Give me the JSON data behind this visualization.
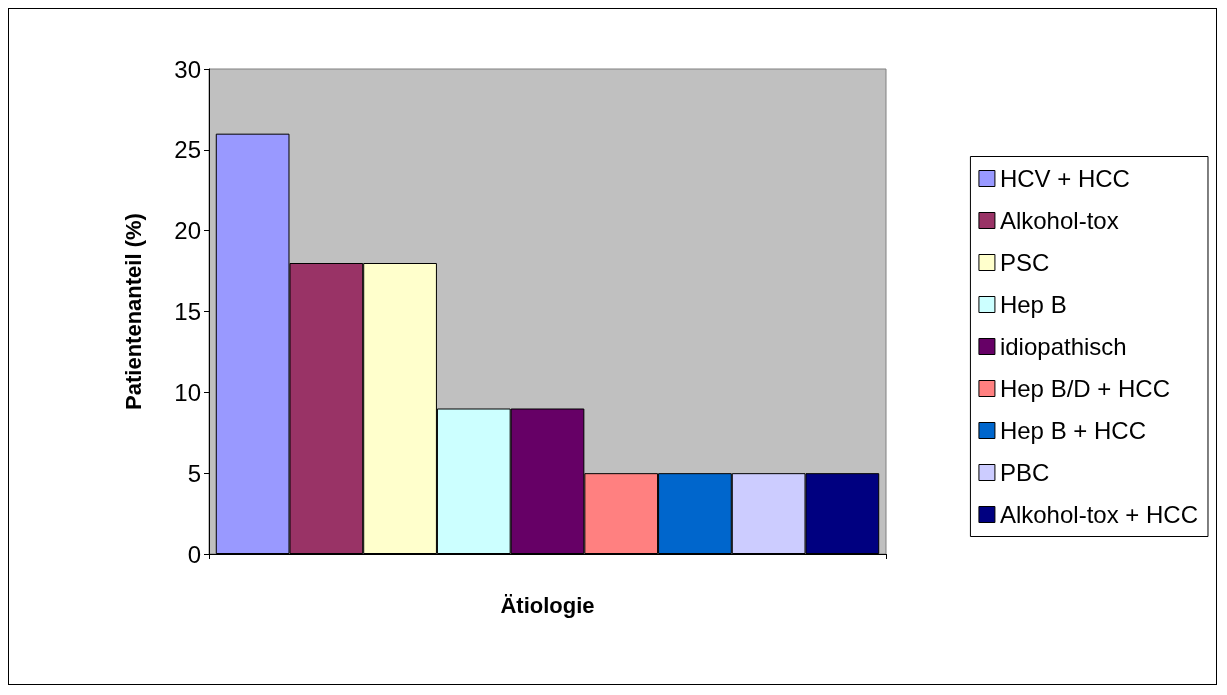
{
  "chart_data": {
    "type": "bar",
    "xlabel": "Ätiologie",
    "ylabel": "Patientenanteil (%)",
    "categories": [
      null
    ],
    "ylim": [
      0,
      30
    ],
    "yticks": [
      0,
      5,
      10,
      15,
      20,
      25,
      30
    ],
    "grid": false,
    "legend": "right",
    "series": [
      {
        "name": "HCV + HCC",
        "color": "#9999ff",
        "values": [
          26
        ]
      },
      {
        "name": "Alkohol-tox",
        "color": "#993366",
        "values": [
          18
        ]
      },
      {
        "name": "PSC",
        "color": "#ffffcc",
        "values": [
          18
        ]
      },
      {
        "name": "Hep B",
        "color": "#ccffff",
        "values": [
          9
        ]
      },
      {
        "name": "idiopathisch",
        "color": "#660066",
        "values": [
          9
        ]
      },
      {
        "name": "Hep B/D + HCC",
        "color": "#ff8080",
        "values": [
          5
        ]
      },
      {
        "name": "Hep B + HCC",
        "color": "#0066cc",
        "values": [
          5
        ]
      },
      {
        "name": "PBC",
        "color": "#ccccff",
        "values": [
          5
        ]
      },
      {
        "name": "Alkohol-tox + HCC",
        "color": "#000080",
        "values": [
          5
        ]
      }
    ]
  }
}
